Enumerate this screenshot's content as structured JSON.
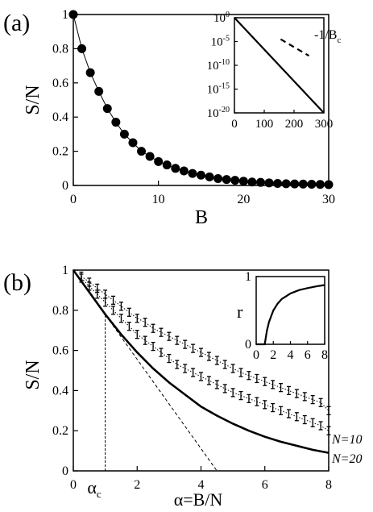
{
  "chart_data": [
    {
      "id": "a-main",
      "type": "scatter",
      "panel_label": "(a)",
      "xlabel": "B",
      "ylabel": "S/N",
      "xlim": [
        0,
        30
      ],
      "ylim": [
        0,
        1
      ],
      "xticks": [
        "0",
        "10",
        "20",
        "30"
      ],
      "yticks": [
        "0",
        "0.2",
        "0.4",
        "0.6",
        "0.8",
        "1"
      ],
      "series": [
        {
          "x": [
            0,
            1,
            2,
            3,
            4,
            5,
            6,
            7,
            8,
            9,
            10,
            11,
            12,
            13,
            14,
            15,
            16,
            17,
            18,
            19,
            20,
            21,
            22,
            23,
            24,
            25,
            26,
            27,
            28,
            29,
            30
          ],
          "values": [
            1.0,
            0.8,
            0.66,
            0.55,
            0.45,
            0.37,
            0.3,
            0.25,
            0.2,
            0.17,
            0.14,
            0.12,
            0.1,
            0.085,
            0.07,
            0.06,
            0.05,
            0.04,
            0.035,
            0.03,
            0.025,
            0.02,
            0.018,
            0.015,
            0.012,
            0.01,
            0.009,
            0.008,
            0.007,
            0.006,
            0.005
          ],
          "style": "filled-circles-with-line"
        }
      ]
    },
    {
      "id": "a-inset",
      "type": "line",
      "xlim": [
        0,
        300
      ],
      "ylim": [
        -20,
        0
      ],
      "yscale": "log10",
      "xticks": [
        "0",
        "100",
        "200",
        "300"
      ],
      "yticks": [
        {
          "base": "10",
          "exp": "0"
        },
        {
          "base": "10",
          "exp": "-5"
        },
        {
          "base": "10",
          "exp": "-10"
        },
        {
          "base": "10",
          "exp": "-15"
        },
        {
          "base": "10",
          "exp": "-20"
        }
      ],
      "series": [
        {
          "x": [
            0,
            300
          ],
          "values": [
            1,
            1e-20
          ],
          "style": "solid"
        },
        {
          "x": [
            155,
            250
          ],
          "values": [
            3e-05,
            1e-08
          ],
          "style": "dashed"
        }
      ],
      "annotation": {
        "text": "-1/B",
        "sub": "c"
      }
    },
    {
      "id": "b-main",
      "type": "line",
      "panel_label": "(b)",
      "xlabel": "α=B/N",
      "ylabel": "S/N",
      "xlim": [
        0,
        8
      ],
      "ylim": [
        0,
        1
      ],
      "xticks": [
        "0",
        "2",
        "4",
        "6",
        "8"
      ],
      "yticks": [
        "0",
        "0.2",
        "0.4",
        "0.6",
        "0.8",
        "1"
      ],
      "alpha_c_label": {
        "text": "α",
        "sub": "c"
      },
      "alpha_c": 1.0,
      "series": [
        {
          "x": [
            0,
            0.5,
            1,
            1.5,
            2,
            2.5,
            3,
            3.5,
            4,
            4.5,
            5,
            5.5,
            6,
            6.5,
            7,
            7.5,
            8
          ],
          "values": [
            1.0,
            0.89,
            0.78,
            0.68,
            0.59,
            0.51,
            0.44,
            0.38,
            0.32,
            0.275,
            0.235,
            0.2,
            0.17,
            0.145,
            0.125,
            0.105,
            0.09
          ],
          "style": "solid"
        },
        {
          "x": [
            0,
            4.5
          ],
          "values": [
            1.0,
            0.0
          ],
          "style": "dashed"
        },
        {
          "name": "N=10",
          "x": [
            0.25,
            0.5,
            0.75,
            1.0,
            1.25,
            1.5,
            1.75,
            2.0,
            2.25,
            2.5,
            2.75,
            3.0,
            3.25,
            3.5,
            3.75,
            4.0,
            4.25,
            4.5,
            4.75,
            5.0,
            5.25,
            5.5,
            5.75,
            6.0,
            6.25,
            6.5,
            6.75,
            7.0,
            7.25,
            7.5,
            7.75,
            8.0
          ],
          "values": [
            0.97,
            0.94,
            0.91,
            0.88,
            0.85,
            0.82,
            0.79,
            0.76,
            0.74,
            0.71,
            0.69,
            0.67,
            0.65,
            0.63,
            0.61,
            0.59,
            0.57,
            0.55,
            0.53,
            0.51,
            0.49,
            0.475,
            0.46,
            0.445,
            0.43,
            0.415,
            0.4,
            0.385,
            0.37,
            0.355,
            0.34,
            0.3
          ],
          "error": 0.02,
          "style": "dotted-errorbars"
        },
        {
          "name": "N=20",
          "x": [
            0.25,
            0.5,
            0.75,
            1.0,
            1.25,
            1.5,
            1.75,
            2.0,
            2.25,
            2.5,
            2.75,
            3.0,
            3.25,
            3.5,
            3.75,
            4.0,
            4.25,
            4.5,
            4.75,
            5.0,
            5.25,
            5.5,
            5.75,
            6.0,
            6.25,
            6.5,
            6.75,
            7.0,
            7.25,
            7.5,
            7.75,
            8.0
          ],
          "values": [
            0.96,
            0.92,
            0.88,
            0.84,
            0.8,
            0.76,
            0.72,
            0.68,
            0.65,
            0.62,
            0.59,
            0.56,
            0.53,
            0.51,
            0.49,
            0.47,
            0.45,
            0.43,
            0.41,
            0.39,
            0.375,
            0.36,
            0.345,
            0.33,
            0.315,
            0.3,
            0.285,
            0.27,
            0.255,
            0.24,
            0.225,
            0.2
          ],
          "error": 0.02,
          "style": "dotted-errorbars"
        }
      ]
    },
    {
      "id": "b-inset",
      "type": "line",
      "ylabel": "r",
      "xlim": [
        0,
        8
      ],
      "ylim": [
        0,
        1
      ],
      "xticks": [
        "0",
        "2",
        "4",
        "6",
        "8"
      ],
      "yticks": [
        "0",
        "1"
      ],
      "series": [
        {
          "x": [
            0,
            1,
            1.25,
            1.5,
            2,
            2.5,
            3,
            3.5,
            4,
            5,
            6,
            7,
            8
          ],
          "values": [
            0,
            0,
            0.2,
            0.33,
            0.5,
            0.6,
            0.67,
            0.71,
            0.75,
            0.8,
            0.83,
            0.855,
            0.875
          ],
          "style": "solid"
        }
      ]
    }
  ]
}
